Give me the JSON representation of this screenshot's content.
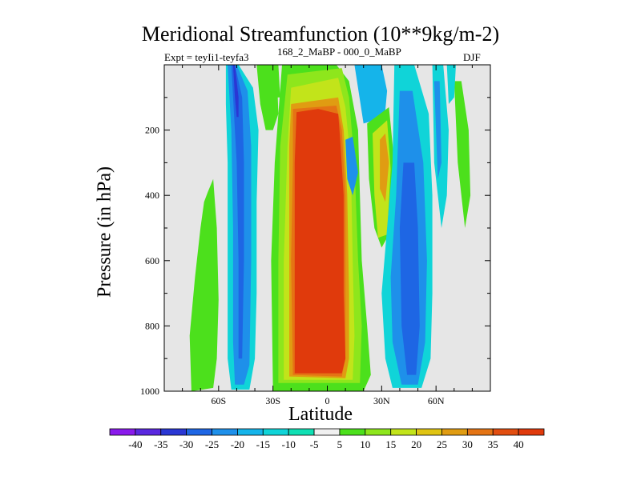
{
  "chart_data": {
    "type": "contour",
    "title": "Meridional Streamfunction (10**9kg/m-2)",
    "subtitle_left": "Expt = teyIi1-teyfa3",
    "subtitle_mid": "168_2_MaBP - 000_0_MaBP",
    "season": "DJF",
    "xlabel": "Latitude",
    "ylabel": "Pressure (in hPa)",
    "xlim": [
      -90,
      90
    ],
    "ylim": [
      1000,
      0
    ],
    "x_ticks": [
      {
        "value": -60,
        "label": "60S"
      },
      {
        "value": -30,
        "label": "30S"
      },
      {
        "value": 0,
        "label": "0"
      },
      {
        "value": 30,
        "label": "30N"
      },
      {
        "value": 60,
        "label": "60N"
      }
    ],
    "y_ticks": [
      200,
      400,
      600,
      800,
      1000
    ],
    "contour_levels": [
      -40,
      -35,
      -30,
      -25,
      -20,
      -15,
      -10,
      -5,
      5,
      10,
      15,
      20,
      25,
      30,
      35,
      40
    ],
    "colorbar_colors": [
      "#8a1aec",
      "#5a28e0",
      "#2a37d4",
      "#1e66e4",
      "#1e90ea",
      "#15b4ea",
      "#10d4d8",
      "#10e0b4",
      "#f0f0f0",
      "#4ce01c",
      "#8ee61c",
      "#c2e41a",
      "#e0c412",
      "#e09c12",
      "#e47414",
      "#e24e10",
      "#e03a0c"
    ],
    "features": [
      {
        "name": "Tropical maximum",
        "lat_range": [
          -18,
          8
        ],
        "p_range": [
          140,
          980
        ],
        "value": 40
      },
      {
        "name": "Southern negative cell",
        "lat_range": [
          -52,
          -38
        ],
        "p_range": [
          0,
          990
        ],
        "value": -30
      },
      {
        "name": "Northern negative cell",
        "lat_range": [
          38,
          52
        ],
        "p_range": [
          0,
          990
        ],
        "value": -25
      },
      {
        "name": "Subtropical positive patch",
        "lat_range": [
          26,
          34
        ],
        "p_range": [
          150,
          560
        ],
        "value": 30
      },
      {
        "name": "Southern positive patch",
        "lat_range": [
          -76,
          -60
        ],
        "p_range": [
          340,
          1000
        ],
        "value": 10
      },
      {
        "name": "Northern positive patch",
        "lat_range": [
          70,
          79
        ],
        "p_range": [
          70,
          500
        ],
        "value": 10
      }
    ]
  }
}
